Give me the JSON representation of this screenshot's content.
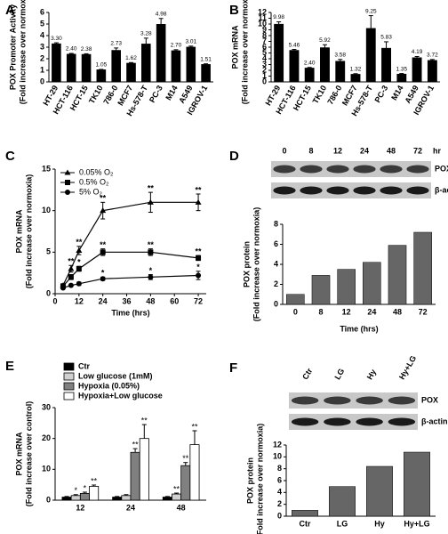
{
  "chart_data": [
    {
      "panel": "A",
      "type": "bar",
      "ylabel": [
        "POX Promoter Activity",
        "(Fold increase over normoxia)"
      ],
      "categories": [
        "HT-29",
        "HCT-116",
        "HCT-15",
        "TK10",
        "786-0",
        "MCF7",
        "Hs-578-T",
        "PC-3",
        "M14",
        "A549",
        "IGROV-1"
      ],
      "values": [
        3.3,
        2.4,
        2.38,
        1.05,
        2.73,
        1.62,
        3.28,
        4.98,
        2.7,
        3.01,
        1.51
      ],
      "value_labels": [
        "3.30",
        "2.40",
        "2.38",
        "1.05",
        "2.73",
        "1.62",
        "3.28",
        "4.98",
        "2.70",
        "3.01",
        "1.51"
      ],
      "errors": [
        0.08,
        0.06,
        0.05,
        0.03,
        0.2,
        0.05,
        0.5,
        0.5,
        0.08,
        0.08,
        0.05
      ],
      "color": "#000000",
      "ylim": [
        0,
        6
      ],
      "yticks": [
        0,
        1,
        2,
        3,
        4,
        5,
        6
      ]
    },
    {
      "panel": "B",
      "type": "bar",
      "ylabel": [
        "POX mRNA",
        "(Fold increase over normoxia)"
      ],
      "categories": [
        "HT-29",
        "HCT-116",
        "HCT-15",
        "TK10",
        "786-0",
        "MCF7",
        "Hs-578-T",
        "PC-3",
        "M14",
        "A549",
        "IGROV-1"
      ],
      "values": [
        9.98,
        5.46,
        2.4,
        5.92,
        3.58,
        1.32,
        9.25,
        5.83,
        1.35,
        4.19,
        3.72
      ],
      "value_labels": [
        "9.98",
        "5.46",
        "2.40",
        "5.92",
        "3.58",
        "1.32",
        "9.25",
        "5.83",
        "1.35",
        "4.19",
        "3.72"
      ],
      "errors": [
        0.4,
        0.15,
        0.1,
        0.5,
        0.3,
        0.1,
        2.2,
        1.1,
        0.1,
        0.2,
        0.15
      ],
      "color": "#000000",
      "ylim": [
        0,
        12
      ],
      "yticks": [
        0,
        1,
        2,
        3,
        4,
        5,
        6,
        7,
        8,
        9,
        10,
        11,
        12
      ]
    },
    {
      "panel": "C",
      "type": "line",
      "ylabel": [
        "POX mRNA",
        "(Fold increase over normoxia)"
      ],
      "xlabel": "Time (hrs)",
      "x": [
        4,
        8,
        12,
        24,
        48,
        72
      ],
      "series": [
        {
          "name": "0.05% O₂",
          "marker": "triangle",
          "color": "#000000",
          "values": [
            1.0,
            3.0,
            5.2,
            10.0,
            11.0,
            11.0
          ],
          "errors": [
            0.2,
            0.4,
            0.5,
            1.0,
            1.2,
            1.0
          ],
          "significance": [
            null,
            "**",
            "**",
            "**",
            "**",
            "**"
          ]
        },
        {
          "name": "0.5% O₂",
          "marker": "square",
          "color": "#000000",
          "values": [
            0.9,
            2.0,
            3.0,
            5.0,
            5.0,
            4.3
          ],
          "errors": [
            0.1,
            0.3,
            0.3,
            0.4,
            0.4,
            0.3
          ],
          "significance": [
            null,
            "*",
            "*",
            "**",
            "**",
            "**"
          ]
        },
        {
          "name": "5% O₂",
          "marker": "circle",
          "color": "#000000",
          "values": [
            0.7,
            1.0,
            1.2,
            1.8,
            2.0,
            2.2
          ],
          "errors": [
            0.1,
            0.1,
            0.2,
            0.2,
            0.3,
            0.5
          ],
          "significance": [
            null,
            null,
            null,
            "*",
            "*",
            "*"
          ]
        }
      ],
      "xlim": [
        0,
        76
      ],
      "xticks": [
        0,
        12,
        24,
        36,
        48,
        60,
        72
      ],
      "ylim": [
        0,
        15
      ],
      "yticks": [
        0,
        5,
        10,
        15
      ],
      "legend": "upper left"
    },
    {
      "panel": "D",
      "type": "bar",
      "blot": {
        "lanes": [
          "0",
          "8",
          "12",
          "24",
          "48",
          "72"
        ],
        "unit": "hr",
        "rows": [
          "POX",
          "β-actin"
        ]
      },
      "ylabel": [
        "POX protein",
        "(Fold increase over normoxia)"
      ],
      "xlabel": "Time (hrs)",
      "categories": [
        "0",
        "8",
        "12",
        "24",
        "48",
        "72"
      ],
      "values": [
        1.0,
        2.9,
        3.5,
        4.2,
        5.9,
        7.2
      ],
      "color": "#666666",
      "ylim": [
        0,
        8
      ],
      "yticks": [
        0,
        2,
        4,
        6,
        8
      ]
    },
    {
      "panel": "E",
      "type": "grouped_bar",
      "ylabel": [
        "POX mRNA",
        "(Fold increase over control)"
      ],
      "categories": [
        "12",
        "24",
        "48"
      ],
      "series": [
        {
          "name": "Ctr",
          "color": "#000000",
          "values": [
            1.0,
            1.0,
            1.0
          ],
          "errors": [
            0.2,
            0.2,
            0.2
          ],
          "significance": [
            null,
            null,
            null
          ]
        },
        {
          "name": "Low glucose (1mM)",
          "color": "#d0d0d0",
          "values": [
            1.5,
            1.5,
            2.0
          ],
          "errors": [
            0.3,
            0.3,
            0.3
          ],
          "significance": [
            "*",
            null,
            "**"
          ]
        },
        {
          "name": "Hypoxia (0.05%)",
          "color": "#808080",
          "values": [
            2.2,
            15.5,
            11.2
          ],
          "errors": [
            0.4,
            1.2,
            1.0
          ],
          "significance": [
            "*",
            "**",
            "**"
          ]
        },
        {
          "name": "Hypoxia+Low glucose",
          "color": "#ffffff",
          "values": [
            4.5,
            20.0,
            18.0
          ],
          "errors": [
            0.4,
            4.5,
            4.5
          ],
          "significance": [
            "**",
            "**",
            "**"
          ]
        }
      ],
      "ylim": [
        0,
        30
      ],
      "yticks": [
        0,
        10,
        20,
        30
      ],
      "legend": "upper left"
    },
    {
      "panel": "F",
      "type": "bar",
      "blot": {
        "lanes": [
          "Ctr",
          "LG",
          "Hy",
          "Hy+LG"
        ],
        "rows": [
          "POX",
          "β-actin"
        ]
      },
      "ylabel": [
        "POX protein",
        "(Fold increase over normoxia)"
      ],
      "categories": [
        "Ctr",
        "LG",
        "Hy",
        "Hy+LG"
      ],
      "values": [
        1.0,
        5.0,
        8.4,
        10.8
      ],
      "color": "#666666",
      "ylim": [
        0,
        12
      ],
      "yticks": [
        0,
        2,
        4,
        6,
        8,
        10,
        12
      ]
    }
  ]
}
